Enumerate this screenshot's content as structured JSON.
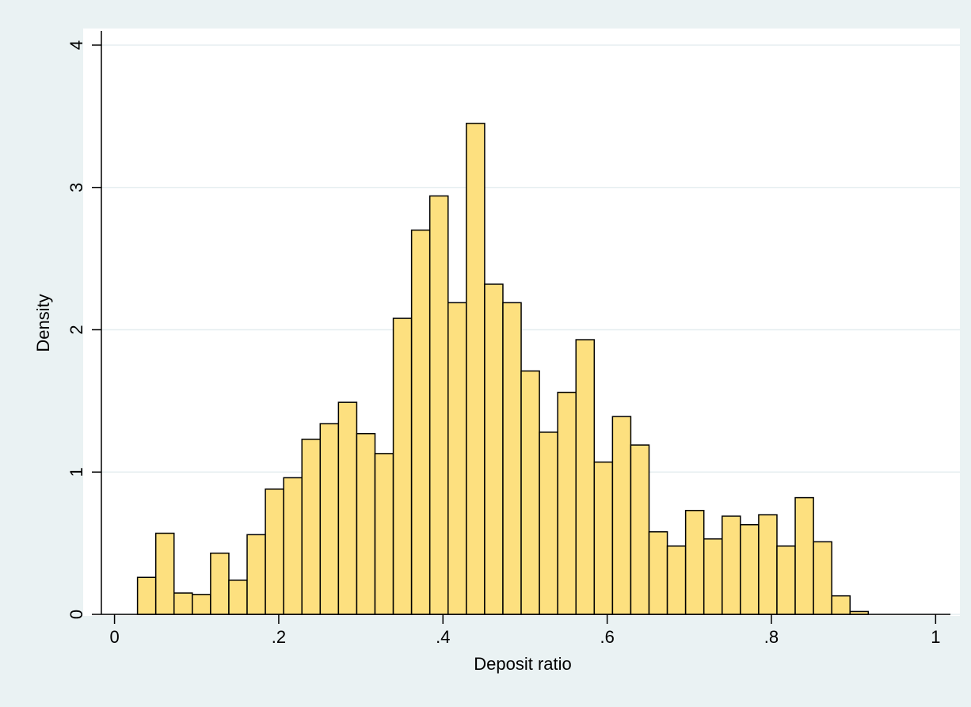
{
  "chart_data": {
    "type": "histogram",
    "x_label": "Deposit ratio",
    "y_label": "Density",
    "bins": [
      0.028,
      0.05025,
      0.0725,
      0.09475,
      0.117,
      0.13925,
      0.1615,
      0.18375,
      0.206,
      0.22825,
      0.2505,
      0.27275,
      0.295,
      0.31725,
      0.3395,
      0.36175,
      0.384,
      0.40625,
      0.4285,
      0.45075,
      0.473,
      0.49525,
      0.5175,
      0.53975,
      0.562,
      0.58425,
      0.6065,
      0.62875,
      0.651,
      0.67325,
      0.6955,
      0.71775,
      0.74,
      0.76225,
      0.7845,
      0.80675,
      0.829,
      0.85125,
      0.8735,
      0.89575,
      0.918
    ],
    "values": [
      0.26,
      0.57,
      0.15,
      0.14,
      0.43,
      0.24,
      0.56,
      0.88,
      0.96,
      1.23,
      1.34,
      1.49,
      1.27,
      1.13,
      2.08,
      2.7,
      2.94,
      2.19,
      3.45,
      2.32,
      2.19,
      1.71,
      1.28,
      1.56,
      1.93,
      1.07,
      1.39,
      1.19,
      0.58,
      0.48,
      0.73,
      0.53,
      0.69,
      0.63,
      0.7,
      0.48,
      0.82,
      0.51,
      0.13,
      0.02
    ],
    "color": "#fde07f",
    "xlim": [
      -0.016,
      1.018
    ],
    "xticks": [
      0,
      {
        "value": 0.2,
        "label": ".2"
      },
      {
        "value": 0.4,
        "label": ".4"
      },
      {
        "value": 0.6,
        "label": ".6"
      },
      {
        "value": 0.8,
        "label": ".8"
      },
      1
    ],
    "ylim": [
      0,
      4.1
    ],
    "yticks": [
      0,
      1,
      2,
      3,
      4
    ],
    "grid": true
  }
}
